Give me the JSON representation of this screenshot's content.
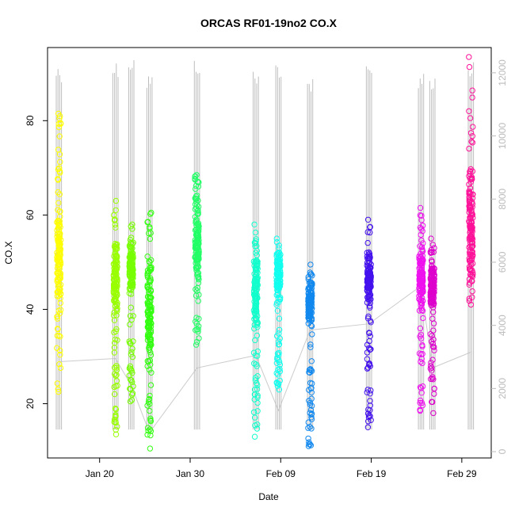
{
  "chart_data": {
    "type": "scatter",
    "title": "ORCAS RF01-19no2 CO.X",
    "xlabel": "Date",
    "ylabel": "CO.X",
    "ylim": [
      8.5,
      95.5
    ],
    "yticks": [
      20,
      40,
      60,
      80
    ],
    "x_ticks": [
      {
        "date": "2016-01-20",
        "label": "Jan 20"
      },
      {
        "date": "2016-01-30",
        "label": "Jan 30"
      },
      {
        "date": "2016-02-09",
        "label": "Feb 09"
      },
      {
        "date": "2016-02-19",
        "label": "Feb 19"
      },
      {
        "date": "2016-02-29",
        "label": "Feb 29"
      }
    ],
    "xlim": [
      "2016-01-14T06:00",
      "2016-03-03T06:00"
    ],
    "y2_axis": {
      "ticks": [
        0,
        2000,
        4000,
        6000,
        8000,
        10000,
        12000
      ],
      "range": [
        -200,
        12800
      ],
      "color": "#bbbbbb"
    },
    "grid": false,
    "flights": [
      {
        "date": "2016-01-15T12:00",
        "color": "#ffff00",
        "ymin": 22.5,
        "ymax": 81.5,
        "core": [
          40,
          62
        ],
        "median": 48,
        "y2_trace": [
          700,
          12300
        ],
        "y2_line": 2850
      },
      {
        "date": "2016-01-21T18:00",
        "color": "#99ff00",
        "ymin": 13.5,
        "ymax": 63,
        "core": [
          38,
          56
        ],
        "median": 45,
        "y2_trace": [
          700,
          12400
        ],
        "y2_line": 2950
      },
      {
        "date": "2016-01-23T12:00",
        "color": "#77ff00",
        "ymin": 20.5,
        "ymax": 58,
        "core": [
          42,
          56
        ],
        "median": 48,
        "y2_trace": [
          700,
          12600
        ],
        "y2_line": 2100
      },
      {
        "date": "2016-01-25T12:00",
        "color": "#33ff11",
        "ymin": 10.5,
        "ymax": 60.5,
        "core": [
          28,
          50
        ],
        "median": 40,
        "y2_trace": [
          700,
          12000
        ],
        "y2_line": 600
      },
      {
        "date": "2016-01-30T18:00",
        "color": "#22ff66",
        "ymin": 32.5,
        "ymax": 68.5,
        "core": [
          42,
          65
        ],
        "median": 53,
        "y2_trace": [
          700,
          12500
        ],
        "y2_line": 2650
      },
      {
        "date": "2016-02-06T06:00",
        "color": "#11ffcc",
        "ymin": 13,
        "ymax": 58,
        "core": [
          36,
          55
        ],
        "median": 45,
        "y2_trace": [
          700,
          12100
        ],
        "y2_line": 3050
      },
      {
        "date": "2016-02-08T18:00",
        "color": "#11ffee",
        "ymin": 23,
        "ymax": 55,
        "core": [
          42,
          53
        ],
        "median": 47,
        "y2_trace": [
          700,
          12400
        ],
        "y2_line": 1300
      },
      {
        "date": "2016-02-12T06:00",
        "color": "#1188ee",
        "ymin": 11,
        "ymax": 49.5,
        "core": [
          36,
          48
        ],
        "median": 41,
        "y2_trace": [
          700,
          11900
        ],
        "y2_line": 3850
      },
      {
        "date": "2016-02-18T18:00",
        "color": "#4411ee",
        "ymin": 15,
        "ymax": 59,
        "core": [
          40,
          52
        ],
        "median": 45,
        "y2_trace": [
          700,
          12300
        ],
        "y2_line": 4050
      },
      {
        "date": "2016-02-24T12:00",
        "color": "#ee11ee",
        "ymin": 18.5,
        "ymax": 61.5,
        "core": [
          40,
          54
        ],
        "median": 46,
        "y2_trace": [
          700,
          12100
        ],
        "y2_line": 5250
      },
      {
        "date": "2016-02-25T18:00",
        "color": "#dd00cc",
        "ymin": 18,
        "ymax": 55,
        "core": [
          40,
          50
        ],
        "median": 44,
        "y2_trace": [
          700,
          12000
        ],
        "y2_line": 2650
      },
      {
        "date": "2016-03-01T00:00",
        "color": "#ff1199",
        "ymin": 41,
        "ymax": 93.5,
        "core": [
          44,
          70
        ],
        "median": 52,
        "y2_trace": [
          700,
          12400
        ],
        "y2_line": 3150
      }
    ]
  }
}
